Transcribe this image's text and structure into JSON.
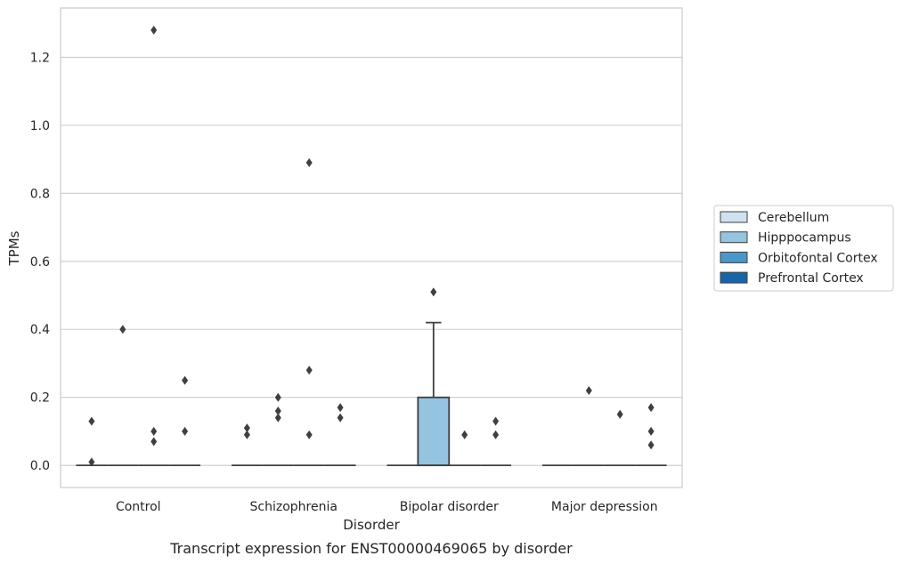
{
  "chart_data": {
    "type": "box",
    "caption": "Transcript expression for ENST00000469065 by disorder",
    "xlabel": "Disorder",
    "ylabel": "TPMs",
    "ylim": [
      -0.065,
      1.345
    ],
    "yticks": [
      0.0,
      0.2,
      0.4,
      0.6,
      0.8,
      1.0,
      1.2
    ],
    "ytick_labels": [
      "0.0",
      "0.2",
      "0.4",
      "0.6",
      "0.8",
      "1.0",
      "1.2"
    ],
    "grid": "horizontal",
    "legend_position": "right",
    "categories": [
      "Control",
      "Schizophrenia",
      "Bipolar disorder",
      "Major depression"
    ],
    "series": [
      {
        "name": "Cerebellum",
        "color": "#d0e1f2"
      },
      {
        "name": "Hipppocampus",
        "color": "#94c4df"
      },
      {
        "name": "Orbitofontal Cortex",
        "color": "#4a98c9"
      },
      {
        "name": "Prefrontal Cortex",
        "color": "#1764ab"
      }
    ],
    "boxes": [
      {
        "category": "Control",
        "series": "Cerebellum",
        "q1": 0,
        "median": 0,
        "q3": 0,
        "whisker_low": 0,
        "whisker_high": 0,
        "outliers": [
          0.13,
          0.01
        ]
      },
      {
        "category": "Control",
        "series": "Hipppocampus",
        "q1": 0,
        "median": 0,
        "q3": 0,
        "whisker_low": 0,
        "whisker_high": 0,
        "outliers": [
          0.4
        ]
      },
      {
        "category": "Control",
        "series": "Orbitofontal Cortex",
        "q1": 0,
        "median": 0,
        "q3": 0,
        "whisker_low": 0,
        "whisker_high": 0,
        "outliers": [
          1.28,
          0.1,
          0.07
        ]
      },
      {
        "category": "Control",
        "series": "Prefrontal Cortex",
        "q1": 0,
        "median": 0,
        "q3": 0,
        "whisker_low": 0,
        "whisker_high": 0,
        "outliers": [
          0.25,
          0.1
        ]
      },
      {
        "category": "Schizophrenia",
        "series": "Cerebellum",
        "q1": 0,
        "median": 0,
        "q3": 0,
        "whisker_low": 0,
        "whisker_high": 0,
        "outliers": [
          0.11,
          0.09
        ]
      },
      {
        "category": "Schizophrenia",
        "series": "Hipppocampus",
        "q1": 0,
        "median": 0,
        "q3": 0,
        "whisker_low": 0,
        "whisker_high": 0,
        "outliers": [
          0.2,
          0.16,
          0.14
        ]
      },
      {
        "category": "Schizophrenia",
        "series": "Orbitofontal Cortex",
        "q1": 0,
        "median": 0,
        "q3": 0,
        "whisker_low": 0,
        "whisker_high": 0,
        "outliers": [
          0.89,
          0.28,
          0.09
        ]
      },
      {
        "category": "Schizophrenia",
        "series": "Prefrontal Cortex",
        "q1": 0,
        "median": 0,
        "q3": 0,
        "whisker_low": 0,
        "whisker_high": 0,
        "outliers": [
          0.17,
          0.14
        ]
      },
      {
        "category": "Bipolar disorder",
        "series": "Cerebellum",
        "q1": 0,
        "median": 0,
        "q3": 0,
        "whisker_low": 0,
        "whisker_high": 0,
        "outliers": []
      },
      {
        "category": "Bipolar disorder",
        "series": "Hipppocampus",
        "q1": 0,
        "median": 0,
        "q3": 0.2,
        "whisker_low": 0,
        "whisker_high": 0.42,
        "outliers": [
          0.51
        ]
      },
      {
        "category": "Bipolar disorder",
        "series": "Orbitofontal Cortex",
        "q1": 0,
        "median": 0,
        "q3": 0,
        "whisker_low": 0,
        "whisker_high": 0,
        "outliers": [
          0.09
        ]
      },
      {
        "category": "Bipolar disorder",
        "series": "Prefrontal Cortex",
        "q1": 0,
        "median": 0,
        "q3": 0,
        "whisker_low": 0,
        "whisker_high": 0,
        "outliers": [
          0.13,
          0.09
        ]
      },
      {
        "category": "Major depression",
        "series": "Cerebellum",
        "q1": 0,
        "median": 0,
        "q3": 0,
        "whisker_low": 0,
        "whisker_high": 0,
        "outliers": []
      },
      {
        "category": "Major depression",
        "series": "Hipppocampus",
        "q1": 0,
        "median": 0,
        "q3": 0,
        "whisker_low": 0,
        "whisker_high": 0,
        "outliers": [
          0.22
        ]
      },
      {
        "category": "Major depression",
        "series": "Orbitofontal Cortex",
        "q1": 0,
        "median": 0,
        "q3": 0,
        "whisker_low": 0,
        "whisker_high": 0,
        "outliers": [
          0.15
        ]
      },
      {
        "category": "Major depression",
        "series": "Prefrontal Cortex",
        "q1": 0,
        "median": 0,
        "q3": 0,
        "whisker_low": 0,
        "whisker_high": 0,
        "outliers": [
          0.17,
          0.1,
          0.06
        ]
      }
    ]
  }
}
